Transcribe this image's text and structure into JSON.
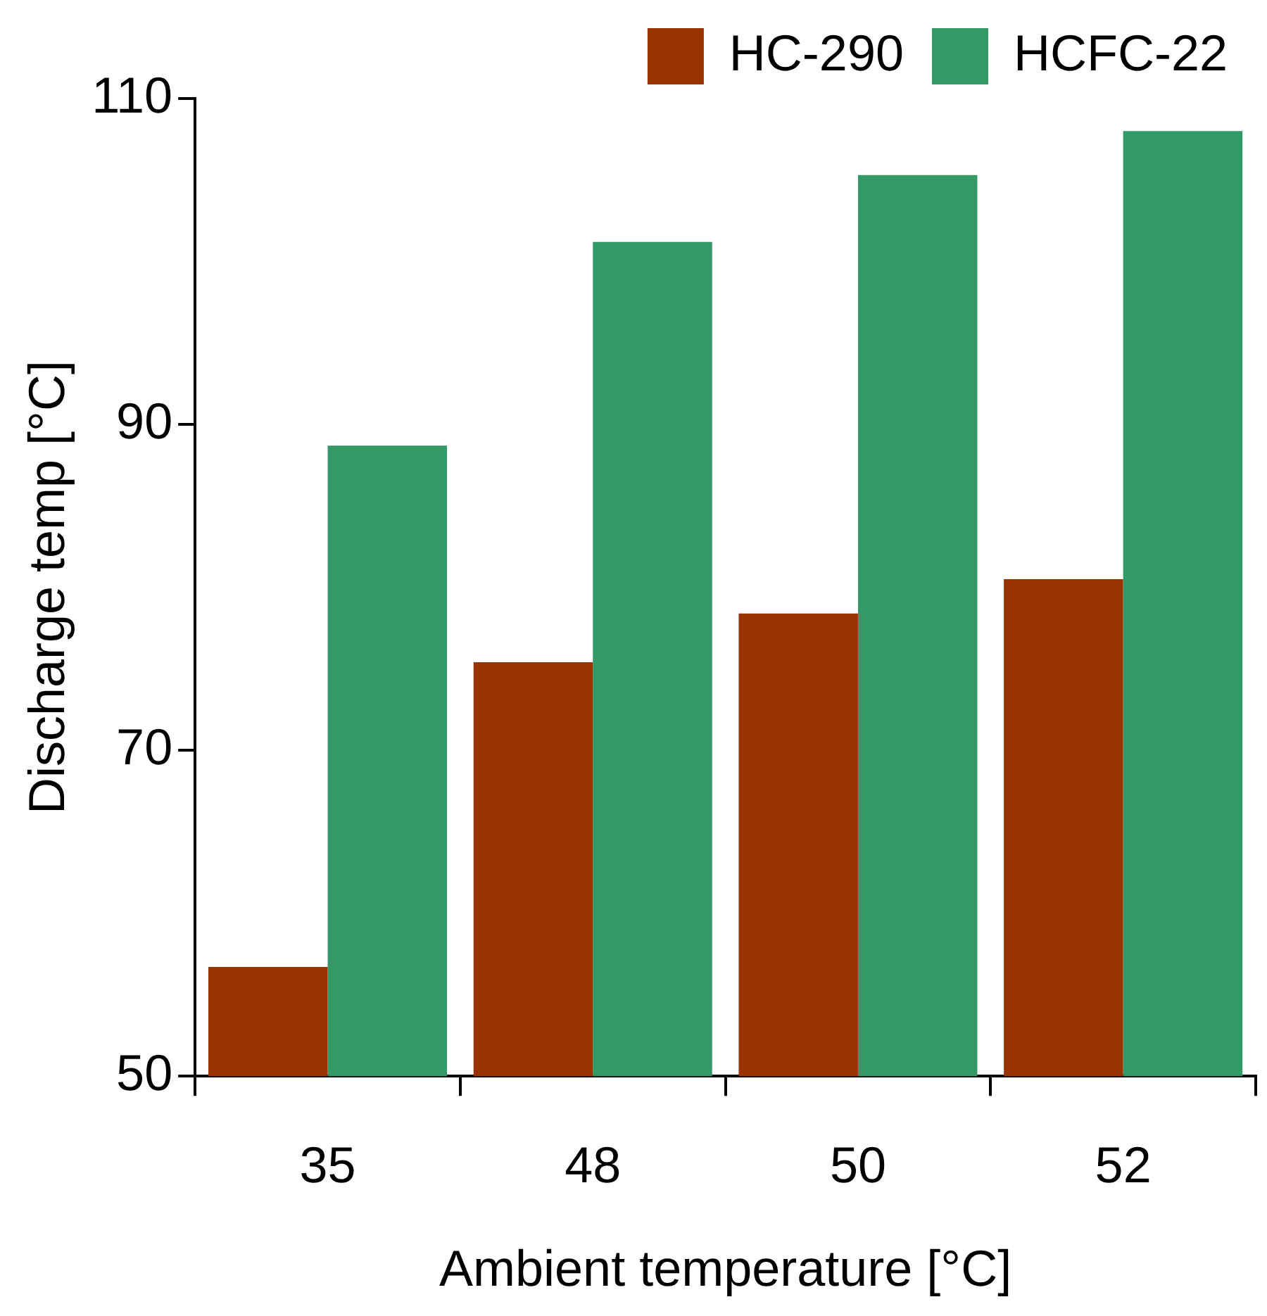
{
  "chart_data": {
    "type": "bar",
    "xlabel": "Ambient temperature [°C]",
    "ylabel": "Discharge temp [°C]",
    "categories": [
      "35",
      "48",
      "50",
      "52"
    ],
    "series": [
      {
        "name": "HC-290",
        "color": "#993300",
        "values": [
          56.7,
          75.4,
          78.4,
          80.5
        ]
      },
      {
        "name": "HCFC-22",
        "color": "#339966",
        "values": [
          88.7,
          101.2,
          105.3,
          108
        ]
      }
    ],
    "ylim": [
      50,
      110
    ],
    "yticks": [
      50,
      70,
      90,
      110
    ],
    "grid": false,
    "legend": "top"
  }
}
